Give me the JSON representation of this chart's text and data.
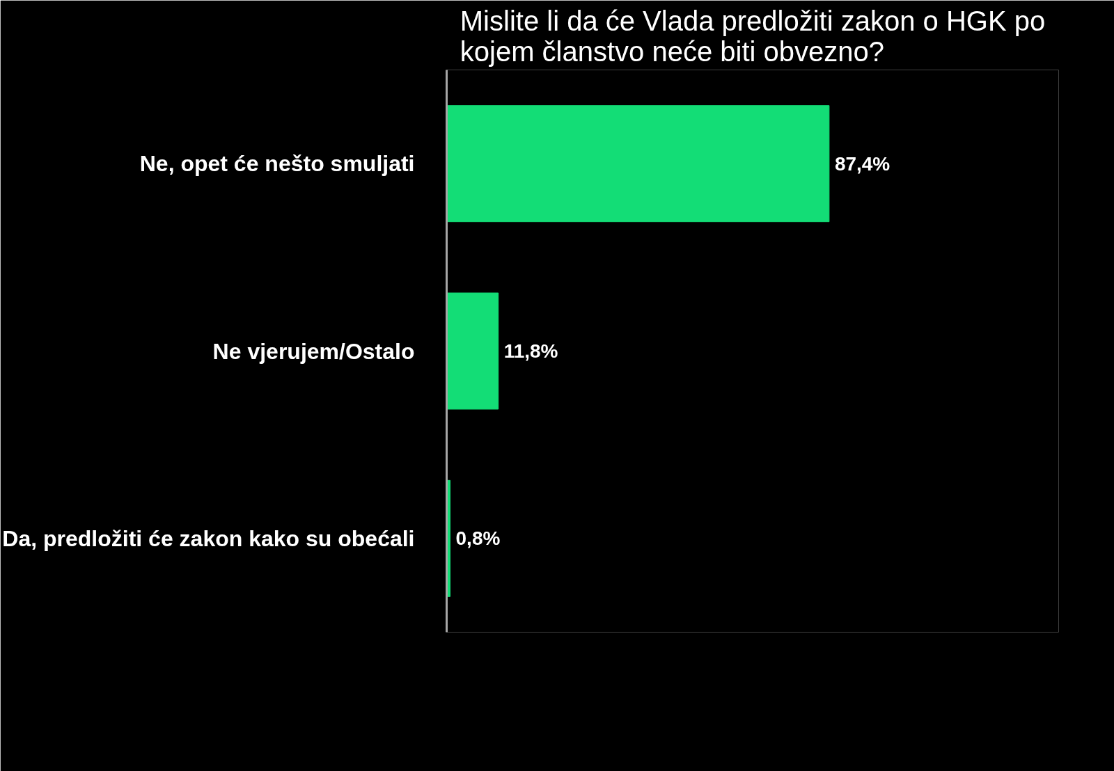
{
  "chart_data": {
    "type": "bar",
    "orientation": "horizontal",
    "title": "Mislite li da će Vlada predložiti zakon o HGK po kojem članstvo neće biti obvezno?",
    "categories": [
      "Ne, opet će nešto smuljati",
      "Ne vjerujem/Ostalo",
      "Da, predložiti će zakon kako su obećali"
    ],
    "values": [
      87.4,
      11.8,
      0.8
    ],
    "value_labels": [
      "87,4%",
      "11,8%",
      "0,8%"
    ],
    "color": "#13dd76",
    "grid": false
  }
}
